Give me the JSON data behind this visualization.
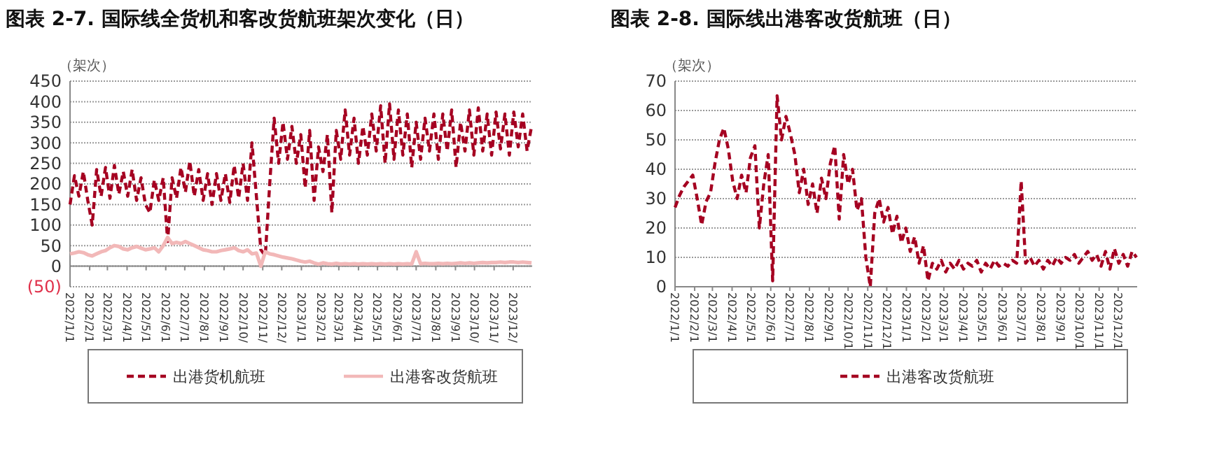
{
  "chart_data": [
    {
      "type": "line",
      "title": "图表 2-7. 国际线全货机和客改货航班架次变化（日）",
      "ylabel": "（架次）",
      "x": [
        "2022-01-01",
        "2022-01-08",
        "2022-01-15",
        "2022-01-22",
        "2022-01-29",
        "2022-02-05",
        "2022-02-12",
        "2022-02-19",
        "2022-02-26",
        "2022-03-05",
        "2022-03-12",
        "2022-03-19",
        "2022-03-26",
        "2022-04-02",
        "2022-04-09",
        "2022-04-16",
        "2022-04-23",
        "2022-04-30",
        "2022-05-07",
        "2022-05-14",
        "2022-05-21",
        "2022-05-28",
        "2022-06-04",
        "2022-06-11",
        "2022-06-18",
        "2022-06-25",
        "2022-07-02",
        "2022-07-09",
        "2022-07-16",
        "2022-07-23",
        "2022-07-30",
        "2022-08-06",
        "2022-08-13",
        "2022-08-20",
        "2022-08-27",
        "2022-09-03",
        "2022-09-10",
        "2022-09-17",
        "2022-09-24",
        "2022-10-01",
        "2022-10-08",
        "2022-10-15",
        "2022-10-22",
        "2022-10-29",
        "2022-11-05",
        "2022-11-12",
        "2022-11-19",
        "2022-11-26",
        "2022-12-03",
        "2022-12-10",
        "2022-12-17",
        "2022-12-24",
        "2022-12-31",
        "2023-01-07",
        "2023-01-14",
        "2023-01-21",
        "2023-01-28",
        "2023-02-04",
        "2023-02-11",
        "2023-02-18",
        "2023-02-25",
        "2023-03-04",
        "2023-03-11",
        "2023-03-18",
        "2023-03-25",
        "2023-04-01",
        "2023-04-08",
        "2023-04-15",
        "2023-04-22",
        "2023-04-29",
        "2023-05-06",
        "2023-05-13",
        "2023-05-20",
        "2023-05-27",
        "2023-06-03",
        "2023-06-10",
        "2023-06-17",
        "2023-06-24",
        "2023-07-01",
        "2023-07-08",
        "2023-07-15",
        "2023-07-22",
        "2023-07-29",
        "2023-08-05",
        "2023-08-12",
        "2023-08-19",
        "2023-08-26",
        "2023-09-02",
        "2023-09-09",
        "2023-09-16",
        "2023-09-23",
        "2023-09-30",
        "2023-10-07",
        "2023-10-14",
        "2023-10-21",
        "2023-10-28",
        "2023-11-04",
        "2023-11-11",
        "2023-11-18",
        "2023-11-25",
        "2023-12-02",
        "2023-12-09",
        "2023-12-16",
        "2023-12-23",
        "2023-12-30"
      ],
      "series": [
        {
          "name": "出港货机航班",
          "color": "#a50021",
          "line_style": "dashed",
          "values": [
            150,
            220,
            170,
            230,
            160,
            100,
            235,
            170,
            240,
            165,
            245,
            175,
            230,
            170,
            235,
            160,
            215,
            150,
            130,
            210,
            160,
            215,
            60,
            215,
            165,
            240,
            180,
            255,
            170,
            235,
            160,
            225,
            150,
            225,
            160,
            225,
            155,
            245,
            165,
            250,
            160,
            300,
            170,
            40,
            25,
            200,
            360,
            250,
            350,
            260,
            340,
            250,
            320,
            190,
            330,
            160,
            290,
            230,
            320,
            130,
            330,
            260,
            380,
            270,
            360,
            250,
            340,
            270,
            370,
            280,
            390,
            250,
            395,
            260,
            380,
            270,
            370,
            240,
            350,
            260,
            360,
            280,
            370,
            260,
            370,
            280,
            380,
            240,
            350,
            280,
            380,
            270,
            385,
            280,
            370,
            270,
            375,
            285,
            370,
            270,
            375,
            290,
            370,
            280,
            340
          ]
        },
        {
          "name": "出港客改货航班",
          "color": "#f2b8b8",
          "line_style": "solid",
          "values": [
            30,
            32,
            35,
            33,
            28,
            25,
            30,
            35,
            38,
            45,
            50,
            48,
            42,
            40,
            45,
            48,
            44,
            40,
            42,
            45,
            35,
            50,
            70,
            55,
            58,
            55,
            60,
            55,
            50,
            45,
            40,
            38,
            35,
            35,
            38,
            40,
            42,
            45,
            38,
            35,
            40,
            30,
            32,
            0,
            35,
            30,
            28,
            25,
            22,
            20,
            18,
            15,
            12,
            10,
            12,
            8,
            5,
            8,
            6,
            5,
            7,
            5,
            6,
            5,
            6,
            5,
            6,
            5,
            6,
            5,
            6,
            5,
            6,
            5,
            6,
            5,
            6,
            5,
            35,
            6,
            7,
            6,
            6,
            7,
            6,
            7,
            6,
            7,
            8,
            7,
            8,
            7,
            8,
            9,
            8,
            9,
            9,
            10,
            9,
            10,
            10,
            9,
            10,
            9,
            8
          ]
        }
      ],
      "xlim": [
        "2022-01-01",
        "2023-12-31"
      ],
      "xticks": [
        {
          "value": "2022-01-01",
          "label": "2022/1/1"
        },
        {
          "value": "2022-02-01",
          "label": "2022/2/1"
        },
        {
          "value": "2022-03-01",
          "label": "2022/3/1"
        },
        {
          "value": "2022-04-01",
          "label": "2022/4/1"
        },
        {
          "value": "2022-05-01",
          "label": "2022/5/1"
        },
        {
          "value": "2022-06-01",
          "label": "2022/6/1"
        },
        {
          "value": "2022-07-01",
          "label": "2022/7/1"
        },
        {
          "value": "2022-08-01",
          "label": "2022/8/1"
        },
        {
          "value": "2022-09-01",
          "label": "2022/9/1"
        },
        {
          "value": "2022-10-01",
          "label": "2022/10/"
        },
        {
          "value": "2022-11-01",
          "label": "2022/11/"
        },
        {
          "value": "2022-12-01",
          "label": "2022/12/"
        },
        {
          "value": "2023-01-01",
          "label": "2023/1/1"
        },
        {
          "value": "2023-02-01",
          "label": "2023/2/1"
        },
        {
          "value": "2023-03-01",
          "label": "2023/3/1"
        },
        {
          "value": "2023-04-01",
          "label": "2023/4/1"
        },
        {
          "value": "2023-05-01",
          "label": "2023/5/1"
        },
        {
          "value": "2023-06-01",
          "label": "2023/6/1"
        },
        {
          "value": "2023-07-01",
          "label": "2023/7/1"
        },
        {
          "value": "2023-08-01",
          "label": "2023/8/1"
        },
        {
          "value": "2023-09-01",
          "label": "2023/9/1"
        },
        {
          "value": "2023-10-01",
          "label": "2023/10/"
        },
        {
          "value": "2023-11-01",
          "label": "2023/11/"
        },
        {
          "value": "2023-12-01",
          "label": "2023/12/"
        }
      ],
      "ylim": [
        -50,
        450
      ],
      "yticks": [
        {
          "value": -50,
          "label": "(50)"
        },
        0,
        50,
        100,
        150,
        200,
        250,
        300,
        350,
        400,
        450
      ],
      "grid": "y",
      "legend": "bottom"
    },
    {
      "type": "line",
      "title": "图表 2-8. 国际线出港客改货航班（日）",
      "ylabel": "（架次）",
      "x": [
        "2022-01-01",
        "2022-01-08",
        "2022-01-15",
        "2022-01-22",
        "2022-01-29",
        "2022-02-05",
        "2022-02-12",
        "2022-02-19",
        "2022-02-26",
        "2022-03-05",
        "2022-03-12",
        "2022-03-19",
        "2022-03-26",
        "2022-04-02",
        "2022-04-09",
        "2022-04-16",
        "2022-04-23",
        "2022-04-30",
        "2022-05-07",
        "2022-05-14",
        "2022-05-21",
        "2022-05-28",
        "2022-06-04",
        "2022-06-11",
        "2022-06-18",
        "2022-06-25",
        "2022-07-02",
        "2022-07-09",
        "2022-07-16",
        "2022-07-23",
        "2022-07-30",
        "2022-08-06",
        "2022-08-13",
        "2022-08-20",
        "2022-08-27",
        "2022-09-03",
        "2022-09-10",
        "2022-09-17",
        "2022-09-24",
        "2022-10-01",
        "2022-10-08",
        "2022-10-15",
        "2022-10-22",
        "2022-10-29",
        "2022-11-05",
        "2022-11-12",
        "2022-11-19",
        "2022-11-26",
        "2022-12-03",
        "2022-12-10",
        "2022-12-17",
        "2022-12-24",
        "2022-12-31",
        "2023-01-07",
        "2023-01-14",
        "2023-01-21",
        "2023-01-28",
        "2023-02-04",
        "2023-02-11",
        "2023-02-18",
        "2023-02-25",
        "2023-03-04",
        "2023-03-11",
        "2023-03-18",
        "2023-03-25",
        "2023-04-01",
        "2023-04-08",
        "2023-04-15",
        "2023-04-22",
        "2023-04-29",
        "2023-05-06",
        "2023-05-13",
        "2023-05-20",
        "2023-05-27",
        "2023-06-03",
        "2023-06-10",
        "2023-06-17",
        "2023-06-24",
        "2023-07-01",
        "2023-07-08",
        "2023-07-15",
        "2023-07-22",
        "2023-07-29",
        "2023-08-05",
        "2023-08-12",
        "2023-08-19",
        "2023-08-26",
        "2023-09-02",
        "2023-09-09",
        "2023-09-16",
        "2023-09-23",
        "2023-09-30",
        "2023-10-07",
        "2023-10-14",
        "2023-10-21",
        "2023-10-28",
        "2023-11-04",
        "2023-11-11",
        "2023-11-18",
        "2023-11-25",
        "2023-12-02",
        "2023-12-09",
        "2023-12-16",
        "2023-12-23",
        "2023-12-30"
      ],
      "series": [
        {
          "name": "出港客改货航班",
          "color": "#a50021",
          "line_style": "dashed",
          "values": [
            27,
            31,
            34,
            36,
            38,
            30,
            21,
            29,
            32,
            42,
            50,
            54,
            47,
            36,
            30,
            38,
            32,
            44,
            48,
            20,
            35,
            45,
            2,
            65,
            50,
            58,
            52,
            45,
            32,
            40,
            28,
            35,
            25,
            37,
            30,
            42,
            48,
            23,
            45,
            35,
            40,
            26,
            30,
            10,
            0,
            25,
            30,
            22,
            27,
            18,
            24,
            15,
            20,
            12,
            17,
            8,
            14,
            2,
            8,
            6,
            9,
            5,
            8,
            6,
            9,
            6,
            8,
            7,
            9,
            5,
            8,
            6,
            9,
            7,
            8,
            7,
            9,
            8,
            36,
            8,
            10,
            7,
            9,
            6,
            9,
            7,
            10,
            8,
            10,
            9,
            11,
            8,
            10,
            12,
            9,
            11,
            7,
            12,
            6,
            13,
            8,
            11,
            7,
            12,
            10
          ]
        }
      ],
      "xlim": [
        "2022-01-01",
        "2023-12-31"
      ],
      "xticks": [
        {
          "value": "2022-01-01",
          "label": "2022/1/1"
        },
        {
          "value": "2022-02-01",
          "label": "2022/2/1"
        },
        {
          "value": "2022-03-01",
          "label": "2022/3/1"
        },
        {
          "value": "2022-04-01",
          "label": "2022/4/1"
        },
        {
          "value": "2022-05-01",
          "label": "2022/5/1"
        },
        {
          "value": "2022-06-01",
          "label": "2022/6/1"
        },
        {
          "value": "2022-07-01",
          "label": "2022/7/1"
        },
        {
          "value": "2022-08-01",
          "label": "2022/8/1"
        },
        {
          "value": "2022-09-01",
          "label": "2022/9/1"
        },
        {
          "value": "2022-10-01",
          "label": "2022/10/1"
        },
        {
          "value": "2022-11-01",
          "label": "2022/11/1"
        },
        {
          "value": "2022-12-01",
          "label": "2022/12/1"
        },
        {
          "value": "2023-01-01",
          "label": "2023/1/1"
        },
        {
          "value": "2023-02-01",
          "label": "2023/2/1"
        },
        {
          "value": "2023-03-01",
          "label": "2023/3/1"
        },
        {
          "value": "2023-04-01",
          "label": "2023/4/1"
        },
        {
          "value": "2023-05-01",
          "label": "2023/5/1"
        },
        {
          "value": "2023-06-01",
          "label": "2023/6/1"
        },
        {
          "value": "2023-07-01",
          "label": "2023/7/1"
        },
        {
          "value": "2023-08-01",
          "label": "2023/8/1"
        },
        {
          "value": "2023-09-01",
          "label": "2023/9/1"
        },
        {
          "value": "2023-10-01",
          "label": "2023/10/1"
        },
        {
          "value": "2023-11-01",
          "label": "2023/11/1"
        },
        {
          "value": "2023-12-01",
          "label": "2023/12/1"
        }
      ],
      "ylim": [
        0,
        70
      ],
      "yticks": [
        0,
        10,
        20,
        30,
        40,
        50,
        60,
        70
      ],
      "grid": "y",
      "legend": "bottom"
    }
  ]
}
